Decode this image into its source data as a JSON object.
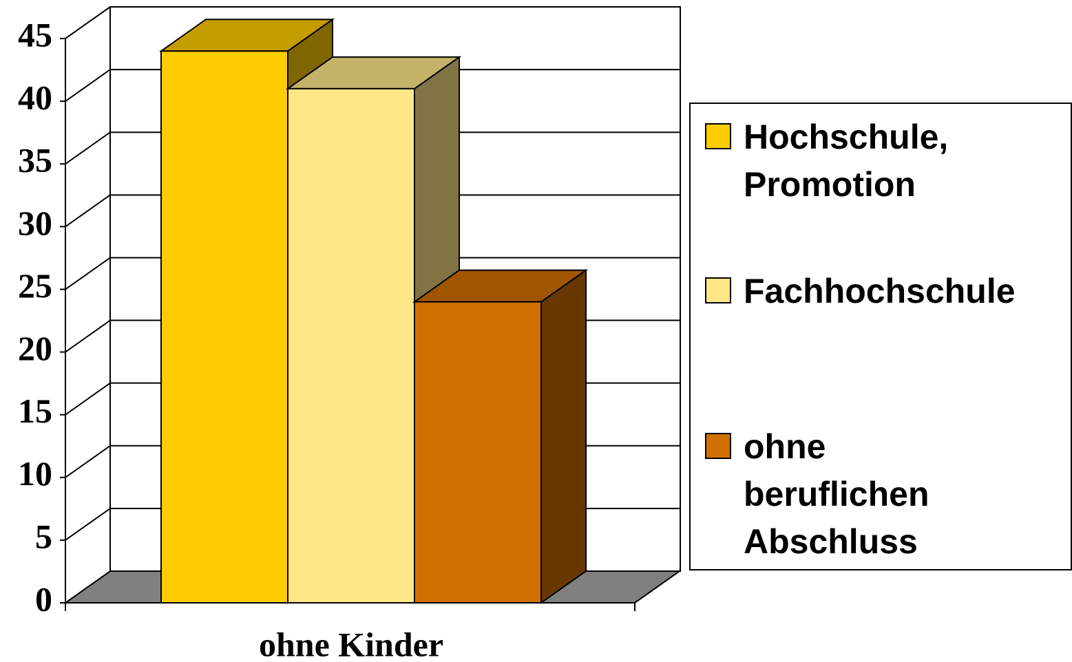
{
  "chart_data": {
    "type": "bar3d",
    "categories": [
      "ohne Kinder"
    ],
    "series": [
      {
        "name": "Hochschule, Promotion",
        "color": "#ffcc00",
        "values": [
          44
        ]
      },
      {
        "name": "Fachhochschule",
        "color": "#ffe788",
        "values": [
          41
        ]
      },
      {
        "name": "ohne beruflichen Abschluss",
        "color": "#d07000",
        "values": [
          24
        ]
      }
    ],
    "ylim": [
      0,
      45
    ],
    "yticks": [
      0,
      5,
      10,
      15,
      20,
      25,
      30,
      35,
      40,
      45
    ],
    "grid": true,
    "legend": "right"
  }
}
